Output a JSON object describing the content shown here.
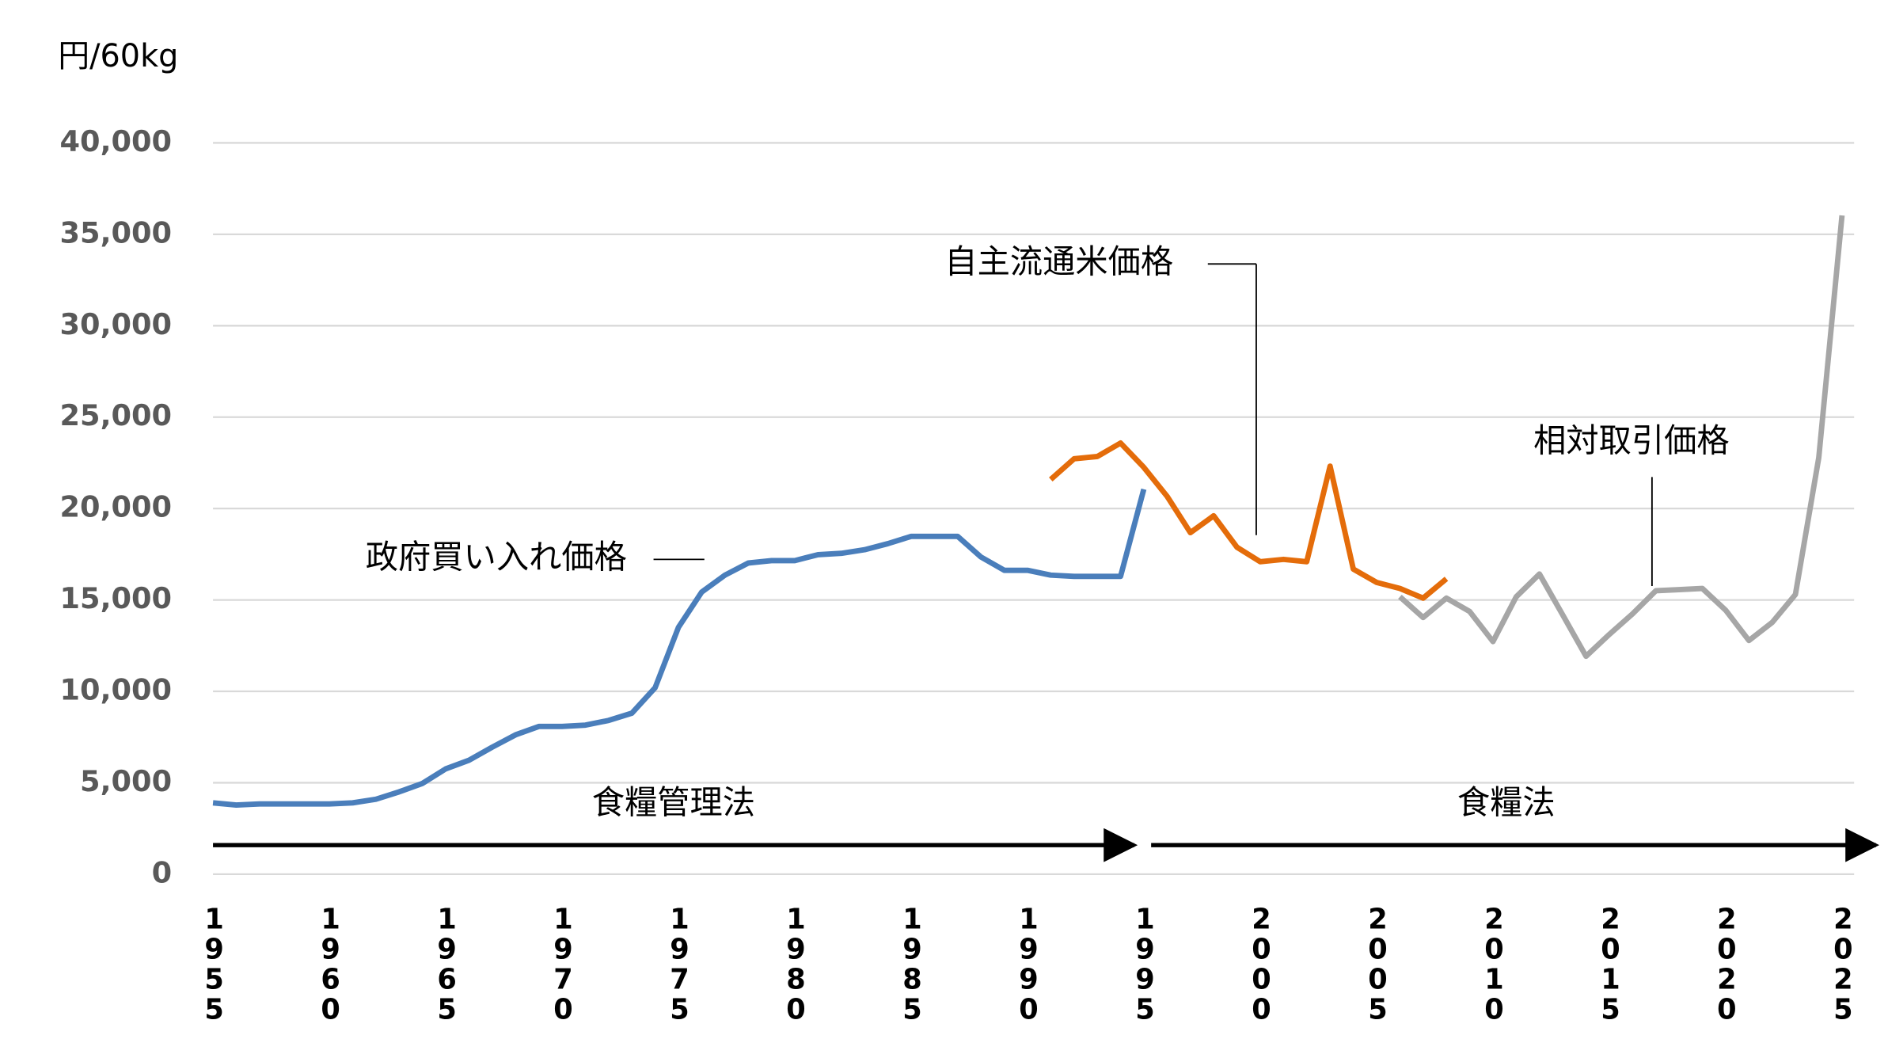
{
  "chart_data": {
    "type": "line",
    "y_label": "円/60kg",
    "ylim": [
      0,
      40000
    ],
    "yticks": [
      {
        "value": 0,
        "label": "0"
      },
      {
        "value": 5000,
        "label": "5,000"
      },
      {
        "value": 10000,
        "label": "10,000"
      },
      {
        "value": 15000,
        "label": "15,000"
      },
      {
        "value": 20000,
        "label": "20,000"
      },
      {
        "value": 25000,
        "label": "25,000"
      },
      {
        "value": 30000,
        "label": "30,000"
      },
      {
        "value": 35000,
        "label": "35,000"
      },
      {
        "value": 40000,
        "label": "40,000"
      }
    ],
    "xlim": [
      1955,
      2025
    ],
    "xticks": [
      1955,
      1960,
      1965,
      1970,
      1975,
      1980,
      1985,
      1990,
      1995,
      2000,
      2005,
      2010,
      2015,
      2020,
      2025
    ],
    "grid": true,
    "series": [
      {
        "name": "政府買い入れ価格",
        "color": "#4a7ebb",
        "x": [
          1955,
          1956,
          1957,
          1958,
          1959,
          1960,
          1961,
          1962,
          1963,
          1964,
          1965,
          1966,
          1967,
          1968,
          1969,
          1970,
          1971,
          1972,
          1973,
          1974,
          1975,
          1976,
          1977,
          1978,
          1979,
          1980,
          1981,
          1982,
          1983,
          1984,
          1985,
          1986,
          1987,
          1988,
          1989,
          1990,
          1991,
          1992,
          1993,
          1994,
          1995
        ],
        "values": [
          3900,
          3780,
          3840,
          3840,
          3840,
          3840,
          3900,
          4100,
          4500,
          4970,
          5760,
          6230,
          6950,
          7620,
          8080,
          8080,
          8150,
          8410,
          8810,
          10200,
          13500,
          15430,
          16360,
          17020,
          17150,
          17150,
          17480,
          17550,
          17750,
          18080,
          18480,
          18480,
          18480,
          17350,
          16620,
          16620,
          16360,
          16290,
          16290,
          16290,
          21060
        ]
      },
      {
        "name": "自主流通米価格",
        "color": "#e46c0a",
        "x": [
          1991,
          1992,
          1993,
          1994,
          1995,
          1996,
          1997,
          1998,
          1999,
          2000,
          2001,
          2002,
          2003,
          2004,
          2005,
          2006,
          2007,
          2008
        ],
        "values": [
          21590,
          22720,
          22850,
          23580,
          22250,
          20660,
          18680,
          19600,
          17880,
          17090,
          17220,
          17090,
          22320,
          16690,
          15960,
          15630,
          15100,
          16160
        ]
      },
      {
        "name": "相対取引価格",
        "color": "#a6a6a6",
        "x": [
          2006,
          2007,
          2008,
          2009,
          2010,
          2011,
          2012,
          2013,
          2014,
          2015,
          2016,
          2017,
          2018,
          2019,
          2020,
          2021,
          2022,
          2023,
          2024,
          2025
        ],
        "values": [
          15170,
          14040,
          15100,
          14370,
          12720,
          15170,
          16420,
          14170,
          11920,
          13110,
          14240,
          15500,
          15560,
          15630,
          14440,
          12780,
          13770,
          15300,
          22780,
          36030
        ]
      }
    ],
    "periods": [
      {
        "label": "食糧管理法",
        "from": 1955,
        "to": 1995
      },
      {
        "label": "食糧法",
        "from": 1995,
        "to": 2025
      }
    ]
  }
}
